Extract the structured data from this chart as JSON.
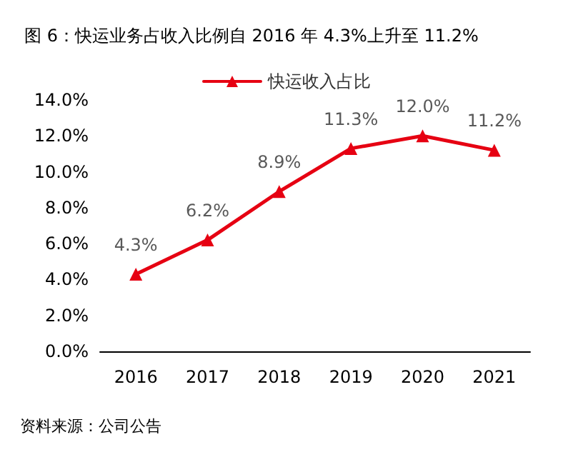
{
  "chart_data": {
    "type": "line",
    "title": "图 6：快运业务占收入比例自 2016 年 4.3%上升至 11.2%",
    "categories": [
      "2016",
      "2017",
      "2018",
      "2019",
      "2020",
      "2021"
    ],
    "series": [
      {
        "name": "快运收入占比",
        "color": "#e60012",
        "values": [
          4.3,
          6.2,
          8.9,
          11.3,
          12.0,
          11.2
        ],
        "value_labels": [
          "4.3%",
          "6.2%",
          "8.9%",
          "11.3%",
          "12.0%",
          "11.2%"
        ]
      }
    ],
    "ylim": [
      0,
      14
    ],
    "yticks": [
      {
        "value": 0,
        "label": "0.0%"
      },
      {
        "value": 2,
        "label": "2.0%"
      },
      {
        "value": 4,
        "label": "4.0%"
      },
      {
        "value": 6,
        "label": "6.0%"
      },
      {
        "value": 8,
        "label": "8.0%"
      },
      {
        "value": 10,
        "label": "10.0%"
      },
      {
        "value": 12,
        "label": "12.0%"
      },
      {
        "value": 14,
        "label": "14.0%"
      }
    ],
    "grid": false,
    "legend": "top",
    "marker": "triangle",
    "line_style": "solid",
    "annotations": [
      "资料来源：公司公告"
    ]
  }
}
